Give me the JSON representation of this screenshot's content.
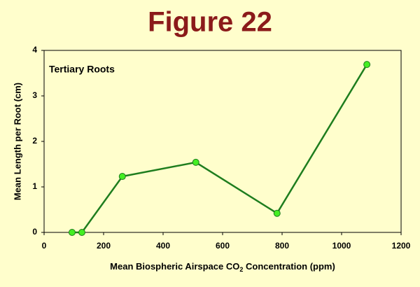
{
  "chart_data": {
    "type": "line",
    "title": "Figure 22",
    "annotation": "Tertiary  Roots",
    "xlabel": [
      "Mean  Biospheric  Airspace  CO",
      "2",
      "  Concentration  (ppm)"
    ],
    "ylabel": "Mean  Length  per  Root  (cm)",
    "x": [
      94,
      127,
      263,
      510,
      783,
      1085
    ],
    "values": [
      0,
      0,
      1.23,
      1.54,
      0.42,
      3.69
    ],
    "color": "#1e7d1e",
    "marker_color": "#44ee22",
    "xlim": [
      0,
      1200
    ],
    "xticks": [
      0,
      200,
      400,
      600,
      800,
      1000,
      1200
    ],
    "ylim": [
      0,
      4
    ],
    "yticks": [
      0,
      1,
      2,
      3,
      4
    ]
  }
}
